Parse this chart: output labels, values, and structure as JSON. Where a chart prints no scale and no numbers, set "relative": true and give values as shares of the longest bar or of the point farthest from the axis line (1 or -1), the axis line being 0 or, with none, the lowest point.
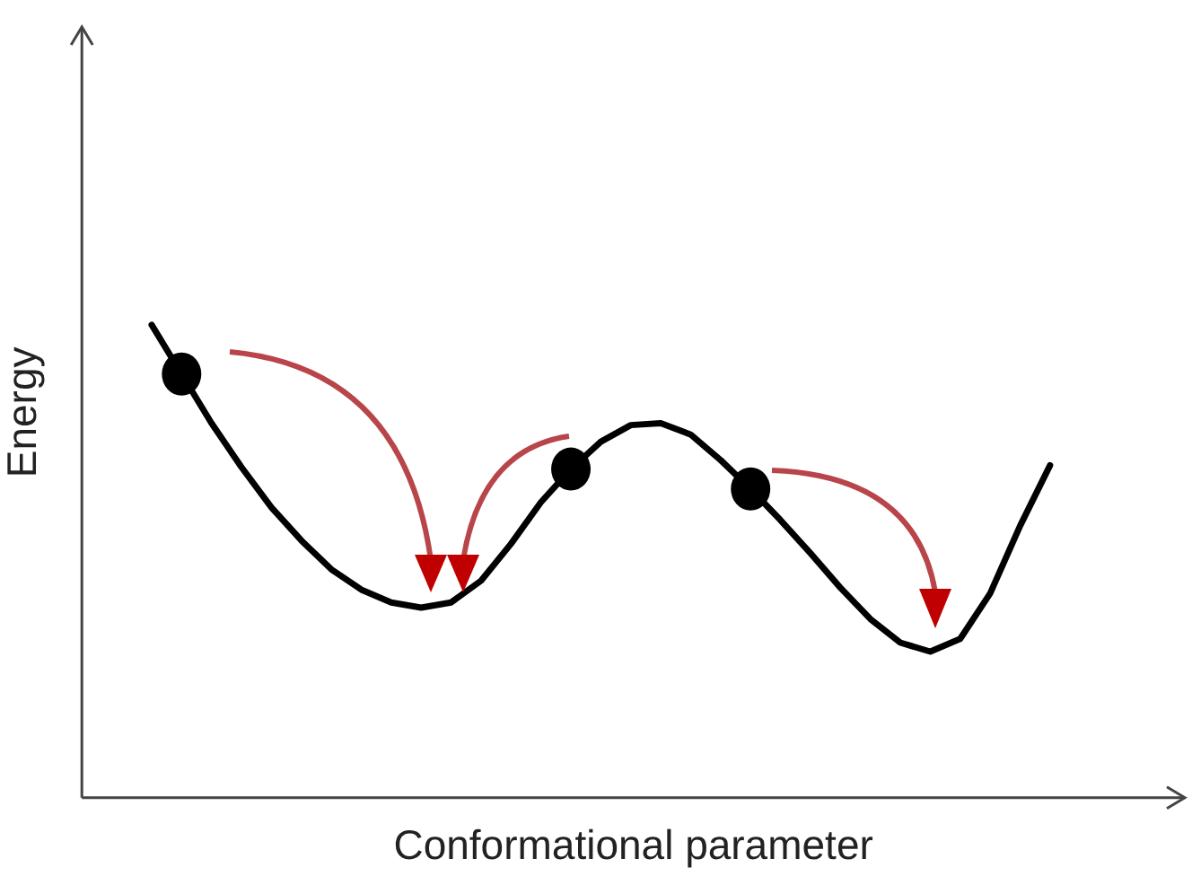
{
  "chart_data": {
    "type": "line",
    "relative": true,
    "xlabel": "Conformational parameter",
    "ylabel": "Energy",
    "tick_labels": false,
    "grid": false,
    "legend": false,
    "marker": "none",
    "line_style": "solid",
    "categories": [
      null,
      null,
      null,
      null,
      null,
      null,
      null,
      null,
      null,
      null,
      null,
      null,
      null,
      null,
      null,
      null,
      null,
      null,
      null,
      null,
      null,
      null,
      null,
      null,
      null,
      null,
      null,
      null,
      null,
      null,
      null
    ],
    "series": [
      {
        "color": "#000000",
        "values": [
          1,
          0.896,
          0.792,
          0.699,
          0.614,
          0.544,
          0.483,
          0.44,
          0.413,
          0.402,
          0.413,
          0.459,
          0.537,
          0.625,
          0.695,
          0.753,
          0.788,
          0.792,
          0.768,
          0.714,
          0.653,
          0.587,
          0.517,
          0.444,
          0.378,
          0.328,
          0.309,
          0.336,
          0.432,
          0.575,
          0.703
        ]
      }
    ]
  }
}
